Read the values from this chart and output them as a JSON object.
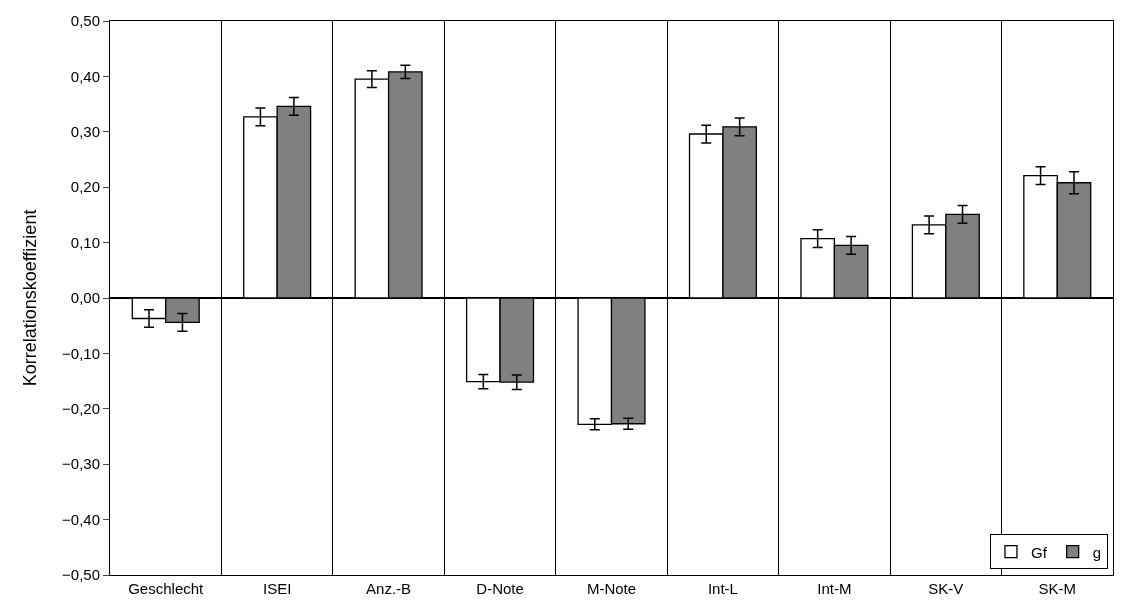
{
  "chart_data": {
    "type": "bar",
    "ylabel": "Korrelationskoeffizient",
    "categories": [
      "Geschlecht",
      "ISEI",
      "Anz.-B",
      "D-Note",
      "M-Note",
      "Int-L",
      "Int-M",
      "SK-V",
      "SK-M"
    ],
    "series": [
      {
        "name": "Gf",
        "color": "#ffffff",
        "values": [
          -0.037,
          0.327,
          0.395,
          -0.151,
          -0.228,
          0.296,
          0.107,
          0.132,
          0.221
        ],
        "errors": [
          0.016,
          0.016,
          0.015,
          0.013,
          0.01,
          0.016,
          0.016,
          0.016,
          0.016
        ]
      },
      {
        "name": "g",
        "color": "#808080",
        "values": [
          -0.044,
          0.346,
          0.408,
          -0.152,
          -0.227,
          0.309,
          0.095,
          0.151,
          0.208
        ],
        "errors": [
          0.016,
          0.016,
          0.012,
          0.013,
          0.01,
          0.016,
          0.016,
          0.016,
          0.02
        ]
      }
    ],
    "ylim": [
      -0.5,
      0.5
    ],
    "yticks": [
      {
        "value": -0.5,
        "label": "−0,50"
      },
      {
        "value": -0.4,
        "label": "−0,40"
      },
      {
        "value": -0.3,
        "label": "−0,30"
      },
      {
        "value": -0.2,
        "label": "−0,20"
      },
      {
        "value": -0.1,
        "label": "−0,10"
      },
      {
        "value": 0,
        "label": "0,00"
      },
      {
        "value": 0.1,
        "label": "0,10"
      },
      {
        "value": 0.2,
        "label": "0,20"
      },
      {
        "value": 0.3,
        "label": "0,30"
      },
      {
        "value": 0.4,
        "label": "0,40"
      },
      {
        "value": 0.5,
        "label": "0,50"
      }
    ],
    "grid": "x",
    "legend": "bottom right"
  }
}
